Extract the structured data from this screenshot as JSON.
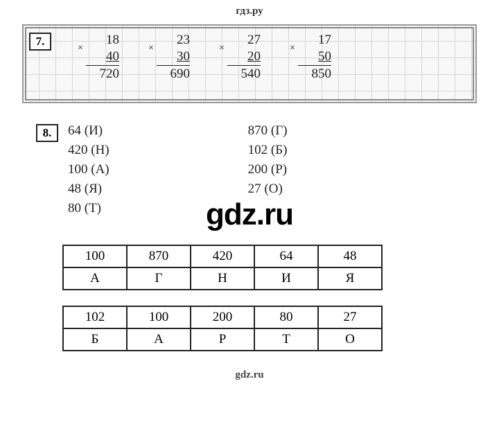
{
  "header": "гдз.ру",
  "footer": "gdz.ru",
  "watermark": "gdz.ru",
  "exercise7": {
    "number": "7.",
    "problems": [
      {
        "a": "18",
        "b": "40",
        "result": "720"
      },
      {
        "a": "23",
        "b": "30",
        "result": "690"
      },
      {
        "a": "27",
        "b": "20",
        "result": "540"
      },
      {
        "a": "17",
        "b": "50",
        "result": "850"
      }
    ]
  },
  "exercise8": {
    "number": "8.",
    "left_col": [
      "64 (И)",
      "420 (Н)",
      "100 (А)",
      "48 (Я)",
      "80 (Т)"
    ],
    "right_col": [
      "870 (Г)",
      "102 (Б)",
      "200 (Р)",
      "27 (О)"
    ],
    "table1_nums": [
      "100",
      "870",
      "420",
      "64",
      "48"
    ],
    "table1_letters": [
      "А",
      "Г",
      "Н",
      "И",
      "Я"
    ],
    "table2_nums": [
      "102",
      "100",
      "200",
      "80",
      "27"
    ],
    "table2_letters": [
      "Б",
      "А",
      "Р",
      "Т",
      "О"
    ]
  },
  "style": {
    "grid_bg": "#f8f8f8",
    "grid_line": "#d3d8dc",
    "grid_border": "#999999",
    "text_color": "#222222",
    "table_border": "#222222",
    "font_body": "Georgia, Times New Roman, serif",
    "font_watermark": "Arial, sans-serif",
    "watermark_fontsize": 44,
    "body_fontsize": 19
  }
}
